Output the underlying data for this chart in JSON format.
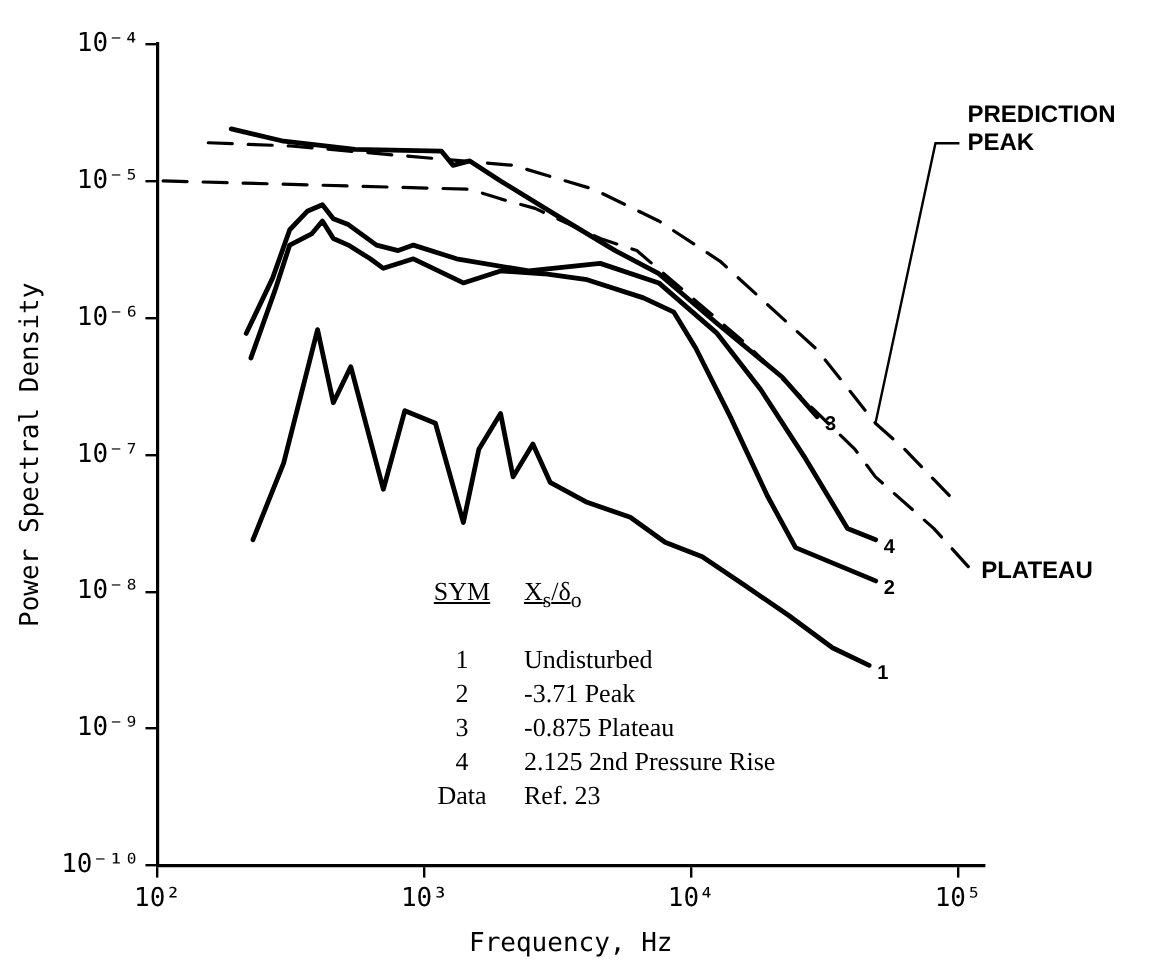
{
  "chart_data": {
    "type": "line",
    "xlabel": "Frequency, Hz",
    "ylabel": "Power Spectral Density",
    "log": "xy",
    "xlim": [
      100,
      125000
    ],
    "ylim": [
      1e-10,
      0.0001
    ],
    "xticks": [
      {
        "value": 100,
        "label": "10²"
      },
      {
        "value": 1000,
        "label": "10³"
      },
      {
        "value": 10000,
        "label": "10⁴"
      },
      {
        "value": 100000,
        "label": "10⁵"
      }
    ],
    "yticks": [
      {
        "value": 1e-10,
        "label": "10⁻¹⁰"
      },
      {
        "value": 1e-09,
        "label": "10⁻⁹"
      },
      {
        "value": 1e-08,
        "label": "10⁻⁸"
      },
      {
        "value": 1e-07,
        "label": "10⁻⁷"
      },
      {
        "value": 1e-06,
        "label": "10⁻⁶"
      },
      {
        "value": 1e-05,
        "label": "10⁻⁵"
      },
      {
        "value": 0.0001,
        "label": "10⁻⁴"
      }
    ],
    "series": [
      {
        "name": "1",
        "color": "#000000",
        "x": [
          228,
          297,
          398,
          456,
          530,
          702,
          845,
          1100,
          1400,
          1600,
          1930,
          2150,
          2550,
          2960,
          4070,
          5910,
          7980,
          11000,
          16000,
          23200,
          33800,
          46400
        ],
        "values": [
          2.4e-08,
          8.7e-08,
          8.2e-07,
          2.4e-07,
          4.4e-07,
          5.6e-08,
          2.1e-07,
          1.7e-07,
          3.2e-08,
          1.1e-07,
          2e-07,
          6.9e-08,
          1.2e-07,
          6.3e-08,
          4.5e-08,
          3.5e-08,
          2.3e-08,
          1.8e-08,
          1.1e-08,
          6.7e-09,
          3.9e-09,
          2.9e-09
        ]
      },
      {
        "name": "2",
        "color": "#000000",
        "x": [
          224,
          276,
          313,
          378,
          415,
          456,
          519,
          627,
          702,
          910,
          1400,
          1930,
          2800,
          4070,
          6620,
          8610,
          10400,
          14000,
          19300,
          24600,
          49100
        ],
        "values": [
          5.1e-07,
          1.6e-06,
          3.4e-06,
          4.1e-06,
          5.1e-06,
          3.8e-06,
          3.4e-06,
          2.7e-06,
          2.3e-06,
          2.7e-06,
          1.8e-06,
          2.2e-06,
          2.1e-06,
          1.9e-06,
          1.4e-06,
          1.1e-06,
          6e-07,
          1.9e-07,
          5e-08,
          2.1e-08,
          1.2e-08
        ]
      },
      {
        "name": "3",
        "color": "#000000",
        "x": [
          189,
          297,
          550,
          1160,
          1280,
          1480,
          1930,
          3130,
          5190,
          7560,
          12500,
          21900,
          29600
        ],
        "values": [
          2.4e-05,
          1.95e-05,
          1.7e-05,
          1.65e-05,
          1.3e-05,
          1.4e-05,
          1e-05,
          5.6e-06,
          3.1e-06,
          2.1e-06,
          9.1e-07,
          3.7e-07,
          1.9e-07
        ]
      },
      {
        "name": "4",
        "color": "#000000",
        "x": [
          215,
          270,
          313,
          364,
          415,
          456,
          519,
          662,
          798,
          910,
          1320,
          2460,
          4560,
          7560,
          12500,
          18200,
          26500,
          38500,
          49100
        ],
        "values": [
          7.7e-07,
          1.95e-06,
          4.4e-06,
          6e-06,
          6.7e-06,
          5.3e-06,
          4.8e-06,
          3.4e-06,
          3.1e-06,
          3.4e-06,
          2.7e-06,
          2.2e-06,
          2.5e-06,
          1.8e-06,
          7.7e-07,
          3e-07,
          9.7e-08,
          2.9e-08,
          2.4e-08
        ]
      },
      {
        "name": "PREDICTION PEAK",
        "color": "#000000",
        "line_style": "dashed",
        "x": [
          155,
          315,
          2150,
          4300,
          7560,
          12800,
          21900,
          29500,
          49000,
          63000,
          98000
        ],
        "values": [
          1.9e-05,
          1.8e-05,
          1.3e-05,
          8.7e-06,
          5.1e-06,
          2.6e-06,
          1e-06,
          5.9e-07,
          1.7e-07,
          1.1e-07,
          4.5e-08
        ]
      },
      {
        "name": "PLATEAU",
        "color": "#000000",
        "line_style": "dashed",
        "x": [
          105,
          1480,
          1930,
          2600,
          4560,
          6250,
          16000,
          41000,
          49000,
          81000,
          110000
        ],
        "values": [
          1e-05,
          8.7e-06,
          7.4e-06,
          6.3e-06,
          3.8e-06,
          3.1e-06,
          6.5e-07,
          1.1e-07,
          6.9e-08,
          2.9e-08,
          1.5e-08
        ]
      }
    ],
    "annotations": [
      "SYM",
      "X$_{s}$/δ$_{o}$",
      "1",
      "Undisturbed",
      "2",
      "-3.71 Peak",
      "3",
      "-0.875 Plateau",
      "4",
      "2.125 2nd Pressure Rise",
      "Data",
      "Ref. 23"
    ]
  }
}
